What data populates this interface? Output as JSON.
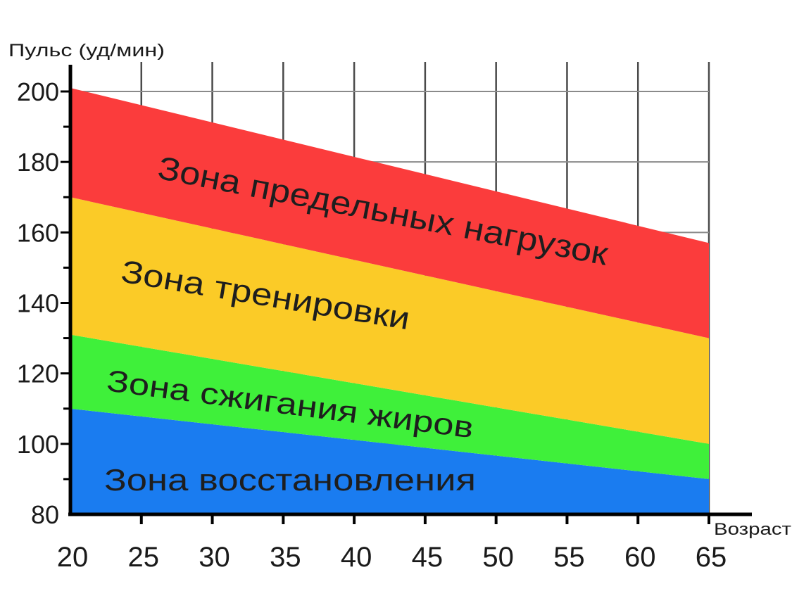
{
  "chart_data": {
    "type": "area",
    "ylabel": "Пульс (уд/мин)",
    "xlabel": "Возраст",
    "xlim": [
      20,
      65
    ],
    "ylim": [
      80,
      200
    ],
    "x_ticks": [
      20,
      25,
      30,
      35,
      40,
      45,
      50,
      55,
      60,
      65
    ],
    "y_ticks": [
      80,
      100,
      120,
      140,
      160,
      180,
      200
    ],
    "y_minor_step": 10,
    "grid": true,
    "x": [
      20,
      65
    ],
    "bands": [
      {
        "name": "Зона восстановления",
        "lower": [
          80,
          80
        ],
        "upper": [
          110,
          90
        ],
        "color": "#1a7cf0"
      },
      {
        "name": "Зона сжигания жиров",
        "lower": [
          110,
          90
        ],
        "upper": [
          131,
          100
        ],
        "color": "#3ff03a"
      },
      {
        "name": "Зона тренировки",
        "lower": [
          131,
          100
        ],
        "upper": [
          170,
          130
        ],
        "color": "#fbcb27"
      },
      {
        "name": "Зона предельных нагрузок",
        "lower": [
          170,
          130
        ],
        "upper": [
          201,
          157
        ],
        "color": "#fb3c3c"
      }
    ]
  }
}
